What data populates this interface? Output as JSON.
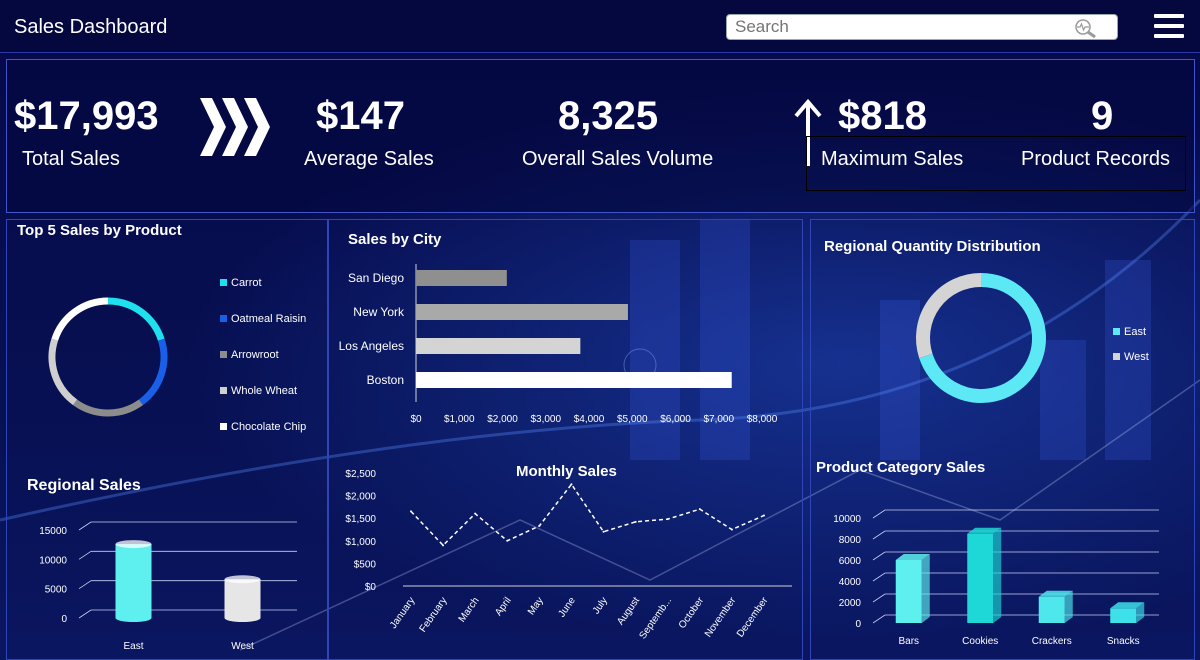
{
  "header": {
    "title": "Sales Dashboard",
    "search_placeholder": "Search"
  },
  "kpis": {
    "total_sales": {
      "value": "$17,993",
      "label": "Total Sales"
    },
    "average_sales": {
      "value": "$147",
      "label": "Average Sales"
    },
    "overall_volume": {
      "value": "8,325",
      "label": "Overall Sales Volume"
    },
    "max_sales": {
      "value": "$818",
      "label": "Maximum Sales"
    },
    "product_records": {
      "value": "9",
      "label": "Product Records"
    }
  },
  "chart_data": [
    {
      "id": "top5",
      "type": "pie",
      "title": "Top 5 Sales by Product",
      "categories": [
        "Carrot",
        "Oatmeal Raisin",
        "Arrowroot",
        "Whole Wheat",
        "Chocolate Chip"
      ],
      "values": [
        20,
        20,
        20,
        20,
        20
      ],
      "colors": [
        "#1fe0ee",
        "#1a5fe8",
        "#8c8c8c",
        "#cfcfcf",
        "#ffffff"
      ],
      "legend": "right"
    },
    {
      "id": "city",
      "type": "bar",
      "title": "Sales by City",
      "categories": [
        "San Diego",
        "New York",
        "Los Angeles",
        "Boston"
      ],
      "values": [
        2100,
        4900,
        3800,
        7300
      ],
      "colors": [
        "#8f8f8f",
        "#a9a9a9",
        "#d4d4d4",
        "#ffffff"
      ],
      "xlim": [
        0,
        8000
      ],
      "xticks": [
        "$0",
        "$1,000",
        "$2,000",
        "$3,000",
        "$4,000",
        "$5,000",
        "$6,000",
        "$7,000",
        "$8,000"
      ]
    },
    {
      "id": "regional_qty",
      "type": "pie",
      "title": "Regional Quantity Distribution",
      "categories": [
        "East",
        "West"
      ],
      "values": [
        70,
        30
      ],
      "colors": [
        "#5ce8f5",
        "#d4d4d4"
      ],
      "legend": "right"
    },
    {
      "id": "regional_sales",
      "type": "bar",
      "title": "Regional Sales",
      "categories": [
        "East",
        "West"
      ],
      "values": [
        12600,
        6600
      ],
      "colors": [
        "#5ef0ee",
        "#e6e6e6"
      ],
      "ylim": [
        0,
        15000
      ],
      "yticks": [
        "0",
        "5000",
        "10000",
        "15000"
      ]
    },
    {
      "id": "monthly",
      "type": "line",
      "title": "Monthly Sales",
      "categories": [
        "January",
        "February",
        "March",
        "April",
        "May",
        "June",
        "July",
        "August",
        "Septemb...",
        "October",
        "November",
        "December"
      ],
      "values": [
        1650,
        900,
        1600,
        1000,
        1330,
        2250,
        1200,
        1420,
        1480,
        1700,
        1250,
        1560
      ],
      "ylim": [
        0,
        2500
      ],
      "yticks": [
        "$0",
        "$500",
        "$1,000",
        "$1,500",
        "$2,000",
        "$2,500"
      ]
    },
    {
      "id": "category",
      "type": "bar",
      "title": "Product Category Sales",
      "categories": [
        "Bars",
        "Cookies",
        "Crackers",
        "Snacks"
      ],
      "values": [
        6000,
        8500,
        2500,
        1400
      ],
      "colors": [
        "#5ef0ee",
        "#1dd8d6",
        "#4ee8ec",
        "#3ee0ea"
      ],
      "ylim": [
        0,
        10000
      ],
      "yticks": [
        "0",
        "2000",
        "4000",
        "6000",
        "8000",
        "10000"
      ]
    }
  ]
}
